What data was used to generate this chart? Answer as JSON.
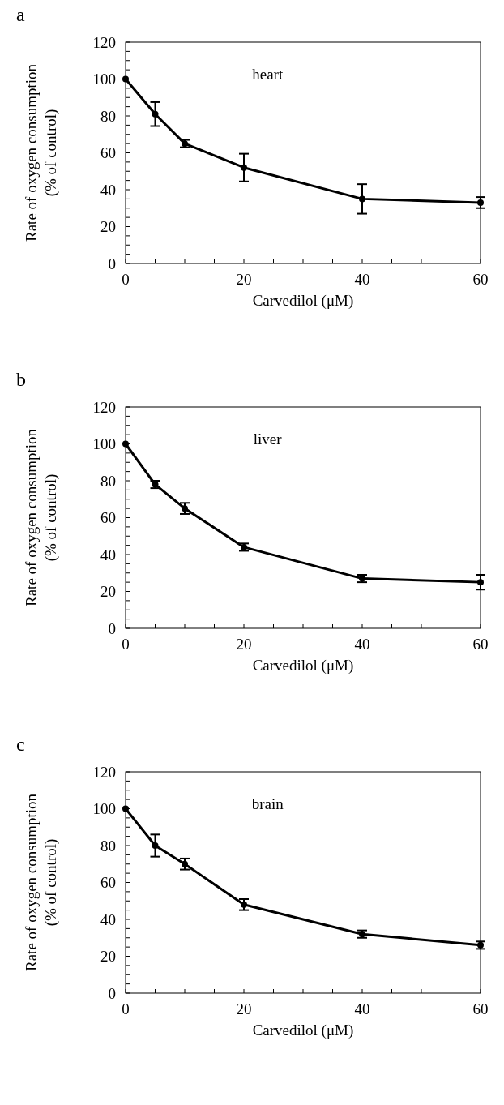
{
  "chart_data": [
    {
      "type": "line",
      "title": "a",
      "xlabel": "Carvedilol (μM)",
      "ylabel": "Rate of oxygen consumption\n(% of control)",
      "annotations": [
        "heart"
      ],
      "x": [
        0,
        5,
        10,
        20,
        40,
        60
      ],
      "series": [
        {
          "color": "#000000",
          "values": [
            100,
            81,
            65,
            52,
            35,
            33
          ],
          "errors": [
            null,
            6.5,
            2,
            7.5,
            8,
            3
          ]
        }
      ],
      "xlim": [
        0,
        60
      ],
      "ylim": [
        0,
        120
      ],
      "xticks": [
        0,
        {
          "value": 5,
          "label": null
        },
        {
          "value": 10,
          "label": null
        },
        {
          "value": 15,
          "label": null
        },
        20,
        {
          "value": 25,
          "label": null
        },
        {
          "value": 30,
          "label": null
        },
        {
          "value": 35,
          "label": null
        },
        40,
        {
          "value": 45,
          "label": null
        },
        {
          "value": 50,
          "label": null
        },
        {
          "value": 55,
          "label": null
        },
        60
      ],
      "yticks": [
        0,
        {
          "value": 5,
          "label": null
        },
        {
          "value": 10,
          "label": null
        },
        {
          "value": 15,
          "label": null
        },
        20,
        {
          "value": 25,
          "label": null
        },
        {
          "value": 30,
          "label": null
        },
        {
          "value": 35,
          "label": null
        },
        40,
        {
          "value": 45,
          "label": null
        },
        {
          "value": 50,
          "label": null
        },
        {
          "value": 55,
          "label": null
        },
        60,
        {
          "value": 65,
          "label": null
        },
        {
          "value": 70,
          "label": null
        },
        {
          "value": 75,
          "label": null
        },
        80,
        {
          "value": 85,
          "label": null
        },
        {
          "value": 90,
          "label": null
        },
        {
          "value": 95,
          "label": null
        },
        100,
        {
          "value": 105,
          "label": null
        },
        {
          "value": 110,
          "label": null
        },
        {
          "value": 115,
          "label": null
        },
        120
      ],
      "marker": "circle",
      "line_style": "solid",
      "grid": false
    },
    {
      "type": "line",
      "title": "b",
      "xlabel": "Carvedilol (μM)",
      "ylabel": "Rate of oxygen consumption\n(% of control)",
      "annotations": [
        "liver"
      ],
      "x": [
        0,
        5,
        10,
        20,
        40,
        60
      ],
      "series": [
        {
          "color": "#000000",
          "values": [
            100,
            78,
            65,
            44,
            27,
            25
          ],
          "errors": [
            null,
            2,
            3,
            2,
            2,
            4
          ]
        }
      ],
      "xlim": [
        0,
        60
      ],
      "ylim": [
        0,
        120
      ],
      "xticks": [
        0,
        {
          "value": 5,
          "label": null
        },
        {
          "value": 10,
          "label": null
        },
        {
          "value": 15,
          "label": null
        },
        20,
        {
          "value": 25,
          "label": null
        },
        {
          "value": 30,
          "label": null
        },
        {
          "value": 35,
          "label": null
        },
        40,
        {
          "value": 45,
          "label": null
        },
        {
          "value": 50,
          "label": null
        },
        {
          "value": 55,
          "label": null
        },
        60
      ],
      "yticks": [
        0,
        {
          "value": 5,
          "label": null
        },
        {
          "value": 10,
          "label": null
        },
        {
          "value": 15,
          "label": null
        },
        20,
        {
          "value": 25,
          "label": null
        },
        {
          "value": 30,
          "label": null
        },
        {
          "value": 35,
          "label": null
        },
        40,
        {
          "value": 45,
          "label": null
        },
        {
          "value": 50,
          "label": null
        },
        {
          "value": 55,
          "label": null
        },
        60,
        {
          "value": 65,
          "label": null
        },
        {
          "value": 70,
          "label": null
        },
        {
          "value": 75,
          "label": null
        },
        80,
        {
          "value": 85,
          "label": null
        },
        {
          "value": 90,
          "label": null
        },
        {
          "value": 95,
          "label": null
        },
        100,
        {
          "value": 105,
          "label": null
        },
        {
          "value": 110,
          "label": null
        },
        {
          "value": 115,
          "label": null
        },
        120
      ],
      "marker": "circle",
      "line_style": "solid",
      "grid": false
    },
    {
      "type": "line",
      "title": "c",
      "xlabel": "Carvedilol (μM)",
      "ylabel": "Rate of oxygen consumption\n(% of control)",
      "annotations": [
        "brain"
      ],
      "x": [
        0,
        5,
        10,
        20,
        40,
        60
      ],
      "series": [
        {
          "color": "#000000",
          "values": [
            100,
            80,
            70,
            48,
            32,
            26
          ],
          "errors": [
            null,
            6,
            3,
            3,
            2,
            2
          ]
        }
      ],
      "xlim": [
        0,
        60
      ],
      "ylim": [
        0,
        120
      ],
      "xticks": [
        0,
        {
          "value": 5,
          "label": null
        },
        {
          "value": 10,
          "label": null
        },
        {
          "value": 15,
          "label": null
        },
        20,
        {
          "value": 25,
          "label": null
        },
        {
          "value": 30,
          "label": null
        },
        {
          "value": 35,
          "label": null
        },
        40,
        {
          "value": 45,
          "label": null
        },
        {
          "value": 50,
          "label": null
        },
        {
          "value": 55,
          "label": null
        },
        60
      ],
      "yticks": [
        0,
        {
          "value": 5,
          "label": null
        },
        {
          "value": 10,
          "label": null
        },
        {
          "value": 15,
          "label": null
        },
        20,
        {
          "value": 25,
          "label": null
        },
        {
          "value": 30,
          "label": null
        },
        {
          "value": 35,
          "label": null
        },
        40,
        {
          "value": 45,
          "label": null
        },
        {
          "value": 50,
          "label": null
        },
        {
          "value": 55,
          "label": null
        },
        60,
        {
          "value": 65,
          "label": null
        },
        {
          "value": 70,
          "label": null
        },
        {
          "value": 75,
          "label": null
        },
        80,
        {
          "value": 85,
          "label": null
        },
        {
          "value": 90,
          "label": null
        },
        {
          "value": 95,
          "label": null
        },
        100,
        {
          "value": 105,
          "label": null
        },
        {
          "value": 110,
          "label": null
        },
        {
          "value": 115,
          "label": null
        },
        120
      ],
      "marker": "circle",
      "line_style": "solid",
      "grid": false
    }
  ]
}
